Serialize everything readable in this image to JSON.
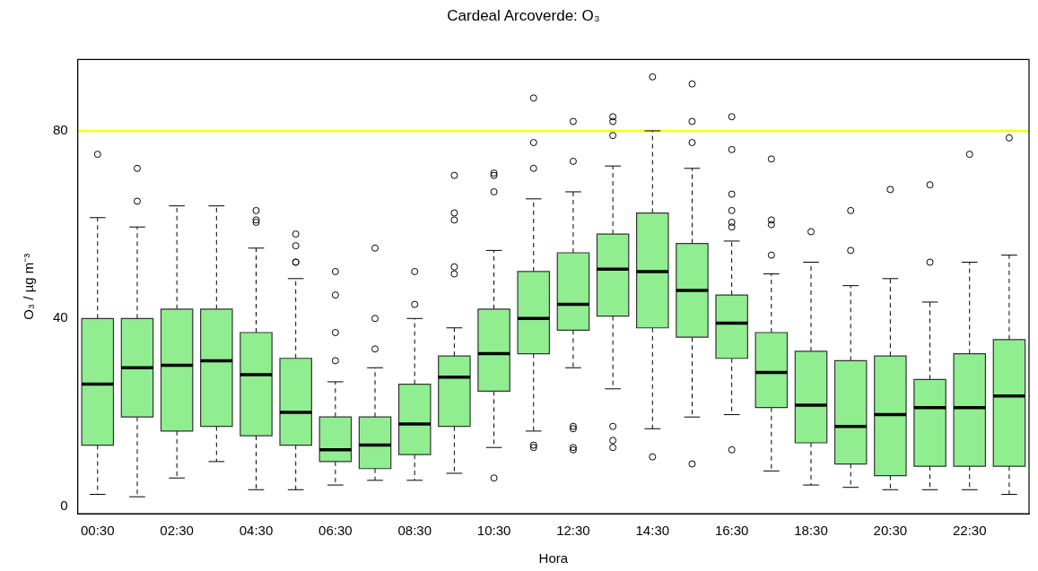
{
  "chart_data": {
    "type": "box",
    "title": "Cardeal Arcoverde: O₃",
    "xlabel": "Hora",
    "ylabel": "O₃ / µg m⁻³",
    "color": "#90ee90",
    "categories": [
      "00:30",
      null,
      "02:30",
      null,
      "04:30",
      null,
      "06:30",
      null,
      "08:30",
      null,
      "10:30",
      null,
      "12:30",
      null,
      "14:30",
      null,
      "16:30",
      null,
      "18:30",
      null,
      "20:30",
      null,
      "22:30",
      null
    ],
    "ylim": [
      -1.6,
      95.2
    ],
    "yticks": [
      0,
      40,
      80
    ],
    "ref_lines": [
      {
        "axis": "y",
        "value": 80,
        "color": "#ffff00"
      }
    ],
    "boxes": [
      {
        "low": 2.5,
        "q1": 13,
        "median": 26,
        "q3": 40,
        "high": 61.5,
        "outliers": [
          75
        ]
      },
      {
        "low": 2,
        "q1": 19,
        "median": 29.5,
        "q3": 40,
        "high": 59.5,
        "outliers": [
          72,
          65
        ]
      },
      {
        "low": 6,
        "q1": 16,
        "median": 30,
        "q3": 42,
        "high": 64
      },
      {
        "low": 9.5,
        "q1": 17,
        "median": 31,
        "q3": 42,
        "high": 64
      },
      {
        "low": 3.5,
        "q1": 15,
        "median": 28,
        "q3": 37,
        "high": 55,
        "outliers": [
          63,
          61,
          60.5
        ]
      },
      {
        "low": 3.5,
        "q1": 13,
        "median": 20,
        "q3": 31.5,
        "high": 48.5,
        "outliers": [
          58,
          55.5,
          52,
          52
        ]
      },
      {
        "low": 4.5,
        "q1": 9.5,
        "median": 12,
        "q3": 19,
        "high": 26.5,
        "outliers": [
          50,
          45,
          37,
          31
        ]
      },
      {
        "low": 5.5,
        "q1": 8,
        "median": 13,
        "q3": 19,
        "high": 29.5,
        "outliers": [
          55,
          40,
          33.5
        ]
      },
      {
        "low": 5.5,
        "q1": 11,
        "median": 17.5,
        "q3": 26,
        "high": 40,
        "outliers": [
          50,
          43
        ]
      },
      {
        "low": 7,
        "q1": 17,
        "median": 27.5,
        "q3": 32,
        "high": 38,
        "outliers": [
          70.5,
          62.5,
          61,
          51,
          49.5
        ]
      },
      {
        "low": 12.5,
        "q1": 24.5,
        "median": 32.5,
        "q3": 42,
        "high": 54.5,
        "outliers": [
          71,
          70.5,
          67,
          6
        ]
      },
      {
        "low": 16,
        "q1": 32.5,
        "median": 40,
        "q3": 50,
        "high": 65.5,
        "outliers": [
          87,
          77.5,
          72,
          13,
          12.5
        ]
      },
      {
        "low": 29.5,
        "q1": 37.5,
        "median": 43,
        "q3": 54,
        "high": 67,
        "outliers": [
          82,
          73.5,
          17,
          16.5,
          12.5,
          12
        ]
      },
      {
        "low": 25,
        "q1": 40.5,
        "median": 50.5,
        "q3": 58,
        "high": 72.5,
        "outliers": [
          83,
          82,
          79,
          17,
          14,
          12.5
        ]
      },
      {
        "low": 16.5,
        "q1": 38,
        "median": 50,
        "q3": 62.5,
        "high": 80,
        "outliers": [
          91.5,
          10.5
        ]
      },
      {
        "low": 19,
        "q1": 36,
        "median": 46,
        "q3": 56,
        "high": 72,
        "outliers": [
          90,
          82,
          77.5,
          9
        ]
      },
      {
        "low": 19.5,
        "q1": 31.5,
        "median": 39,
        "q3": 45,
        "high": 56.5,
        "outliers": [
          83,
          76,
          66.5,
          63,
          60.5,
          59.5,
          12
        ]
      },
      {
        "low": 7.5,
        "q1": 21,
        "median": 28.5,
        "q3": 37,
        "high": 49.5,
        "outliers": [
          74,
          61,
          60,
          53.5
        ]
      },
      {
        "low": 4.5,
        "q1": 13.5,
        "median": 21.5,
        "q3": 33,
        "high": 52,
        "outliers": [
          58.5
        ]
      },
      {
        "low": 4,
        "q1": 9,
        "median": 17,
        "q3": 31,
        "high": 47,
        "outliers": [
          63,
          54.5
        ]
      },
      {
        "low": 3.5,
        "q1": 6.5,
        "median": 19.5,
        "q3": 32,
        "high": 48.5,
        "outliers": [
          67.5
        ]
      },
      {
        "low": 3.5,
        "q1": 8.5,
        "median": 21,
        "q3": 27,
        "high": 43.5,
        "outliers": [
          68.5,
          52
        ]
      },
      {
        "low": 3.5,
        "q1": 8.5,
        "median": 21,
        "q3": 32.5,
        "high": 52,
        "outliers": [
          75
        ]
      },
      {
        "low": 2.5,
        "q1": 8.5,
        "median": 23.5,
        "q3": 35.5,
        "high": 53.5,
        "outliers": [
          78.5
        ]
      }
    ]
  }
}
